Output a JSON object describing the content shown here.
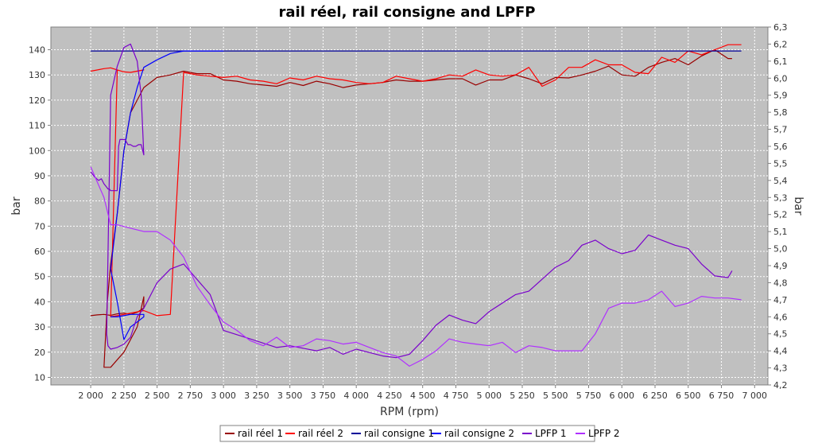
{
  "chart_data": {
    "type": "line",
    "title": "rail réel, rail consigne and LPFP",
    "xlabel": "RPM (rpm)",
    "ylabel": "bar",
    "y2label": "bar",
    "xlim": [
      1700,
      7100
    ],
    "ylim": [
      7,
      149
    ],
    "y2lim": [
      4.2,
      6.3
    ],
    "x_ticks": [
      2000,
      2250,
      2500,
      2750,
      3000,
      3250,
      3500,
      3750,
      4000,
      4250,
      4500,
      4750,
      5000,
      5250,
      5500,
      5750,
      6000,
      6250,
      6500,
      6750,
      7000
    ],
    "x_tick_labels": [
      "2 000",
      "2 250",
      "2 500",
      "2 750",
      "3 000",
      "3 250",
      "3 500",
      "3 750",
      "4 000",
      "4 250",
      "4 500",
      "4 750",
      "5 000",
      "5 250",
      "5 500",
      "5 750",
      "6 000",
      "6 250",
      "6 500",
      "6 750",
      "7 000"
    ],
    "y_ticks": [
      10,
      20,
      30,
      40,
      50,
      60,
      70,
      80,
      90,
      100,
      110,
      120,
      130,
      140
    ],
    "y2_ticks": [
      4.2,
      4.3,
      4.4,
      4.5,
      4.6,
      4.7,
      4.8,
      4.9,
      5.0,
      5.1,
      5.2,
      5.3,
      5.4,
      5.5,
      5.6,
      5.7,
      5.8,
      5.9,
      6.0,
      6.1,
      6.2,
      6.3
    ],
    "y2_tick_labels": [
      "4,2",
      "4,3",
      "4,4",
      "4,5",
      "4,6",
      "4,7",
      "4,8",
      "4,9",
      "5,0",
      "5,1",
      "5,2",
      "5,3",
      "5,4",
      "5,5",
      "5,6",
      "5,7",
      "5,8",
      "5,9",
      "6,0",
      "6,1",
      "6,2",
      "6,3"
    ],
    "grid": true,
    "legend_position": "bottom",
    "colors": {
      "rail_reel_1": "#990000",
      "rail_reel_2": "#ff0000",
      "rail_consigne_1": "#000099",
      "rail_consigne_2": "#0000ff",
      "lpfp_1": "#7a00cc",
      "lpfp_2": "#b030ff"
    },
    "series": [
      {
        "name": "rail réel 1",
        "color_key": "rail_reel_1",
        "axis": "left",
        "x": [
          2000,
          2050,
          2100,
          2150,
          2200,
          2250,
          2300,
          2350,
          2400,
          2400,
          2350,
          2300,
          2250,
          2200,
          2150,
          2100,
          2125,
          2150,
          2200,
          2250,
          2300,
          2350,
          2400,
          2500,
          2600,
          2700,
          2800,
          2900,
          3000,
          3100,
          3200,
          3300,
          3400,
          3500,
          3600,
          3700,
          3800,
          3900,
          4000,
          4100,
          4200,
          4300,
          4400,
          4500,
          4600,
          4700,
          4800,
          4900,
          5000,
          5100,
          5200,
          5300,
          5400,
          5500,
          5600,
          5700,
          5800,
          5900,
          6000,
          6100,
          6200,
          6300,
          6400,
          6500,
          6600,
          6700,
          6800,
          6830
        ],
        "y": [
          34.5,
          34.8,
          35.0,
          34.6,
          35.2,
          35.5,
          35.0,
          35.8,
          37.5,
          42.0,
          30.0,
          25.0,
          20.0,
          17.0,
          14.0,
          14.0,
          40.0,
          55.0,
          75.0,
          100.0,
          115.0,
          120.0,
          125.0,
          129.0,
          130.0,
          131.5,
          130.5,
          130.5,
          128.0,
          127.5,
          126.5,
          126.0,
          125.5,
          127.0,
          125.8,
          127.5,
          126.5,
          125.0,
          126.0,
          126.5,
          127.0,
          128.0,
          127.5,
          127.5,
          128.0,
          128.5,
          128.5,
          126.0,
          128.0,
          128.0,
          130.0,
          128.5,
          126.5,
          129.0,
          128.8,
          130.0,
          131.5,
          133.5,
          130.0,
          129.5,
          133.0,
          135.0,
          136.5,
          134.0,
          137.5,
          140.0,
          136.5,
          136.5
        ]
      },
      {
        "name": "rail réel 2",
        "color_key": "rail_reel_2",
        "axis": "left",
        "x": [
          2000,
          2100,
          2150,
          2200,
          2250,
          2300,
          2350,
          2400,
          2400,
          2300,
          2250,
          2200,
          2150,
          2200,
          2250,
          2300,
          2400,
          2500,
          2600,
          2700,
          2800,
          2900,
          3000,
          3100,
          3200,
          3300,
          3400,
          3500,
          3600,
          3700,
          3800,
          3900,
          4000,
          4100,
          4200,
          4300,
          4400,
          4500,
          4600,
          4700,
          4800,
          4900,
          5000,
          5100,
          5200,
          5300,
          5400,
          5500,
          5600,
          5700,
          5800,
          5900,
          6000,
          6100,
          6200,
          6300,
          6400,
          6500,
          6600,
          6700,
          6800,
          6900
        ],
        "y": [
          131.5,
          132.5,
          132.8,
          132.0,
          131.2,
          131.0,
          131.5,
          132.0,
          132.0,
          131.0,
          131.2,
          132.0,
          34.0,
          34.5,
          35.0,
          35.5,
          36.5,
          34.5,
          35.0,
          131.0,
          130.0,
          129.5,
          129.0,
          129.5,
          128.0,
          127.5,
          126.5,
          128.8,
          128.0,
          129.5,
          128.5,
          128.0,
          127.0,
          126.5,
          127.0,
          129.5,
          128.5,
          127.5,
          128.5,
          130.0,
          129.5,
          132.0,
          130.0,
          129.5,
          130.0,
          133.0,
          125.5,
          128.0,
          133.0,
          133.0,
          136.0,
          134.0,
          134.0,
          131.0,
          130.5,
          137.0,
          135.0,
          139.5,
          138.0,
          140.0,
          142.0,
          142.0
        ]
      },
      {
        "name": "rail consigne 1",
        "color_key": "rail_consigne_1",
        "axis": "left",
        "x": [
          2000,
          2200,
          2400,
          2600,
          2800,
          3000,
          3250,
          3500,
          3750,
          4000,
          4250,
          4500,
          4750,
          5000,
          5250,
          5500,
          5750,
          6000,
          6250,
          6500,
          6750,
          6900
        ],
        "y": [
          139.5,
          139.5,
          139.5,
          139.5,
          139.5,
          139.5,
          139.5,
          139.5,
          139.5,
          139.5,
          139.5,
          139.5,
          139.5,
          139.5,
          139.5,
          139.5,
          139.5,
          139.5,
          139.5,
          139.5,
          139.5,
          139.5
        ]
      },
      {
        "name": "rail consigne 2",
        "color_key": "rail_consigne_2",
        "axis": "left",
        "x": [
          2150,
          2200,
          2250,
          2300,
          2400,
          2400,
          2350,
          2300,
          2250,
          2200,
          2150,
          2150,
          2200,
          2250,
          2300,
          2350,
          2400,
          2500,
          2600,
          2700,
          2800,
          2900,
          3000
        ],
        "y": [
          34.0,
          34.0,
          34.5,
          35.0,
          35.0,
          34.0,
          32.0,
          30.0,
          25.0,
          40.0,
          53.0,
          53.0,
          75.0,
          100.0,
          115.0,
          125.0,
          133.0,
          136.0,
          138.5,
          139.5,
          139.5,
          139.5,
          139.5
        ]
      },
      {
        "name": "LPFP 1",
        "color_key": "lpfp_1",
        "axis": "right",
        "x": [
          2000,
          2010,
          2030,
          2060,
          2080,
          2100,
          2120,
          2130,
          2140,
          2150,
          2170,
          2180,
          2200,
          2210,
          2220,
          2260,
          2280,
          2300,
          2320,
          2340,
          2360,
          2380,
          2380,
          2400,
          2380,
          2350,
          2300,
          2250,
          2200,
          2150,
          2120,
          2130,
          2150,
          2200,
          2250,
          2300,
          2350,
          2400,
          2500,
          2600,
          2700,
          2800,
          2900,
          3000,
          3200,
          3400,
          3500,
          3700,
          3800,
          3900,
          4000,
          4100,
          4200,
          4300,
          4400,
          4500,
          4600,
          4700,
          4800,
          4900,
          5000,
          5100,
          5200,
          5300,
          5400,
          5500,
          5600,
          5700,
          5800,
          5900,
          6000,
          6100,
          6200,
          6300,
          6400,
          6500,
          6600,
          6700,
          6800,
          6830
        ],
        "y": [
          5.45,
          5.44,
          5.42,
          5.4,
          5.41,
          5.38,
          5.36,
          5.35,
          5.35,
          5.34,
          5.34,
          5.34,
          5.34,
          5.6,
          5.64,
          5.64,
          5.61,
          5.61,
          5.6,
          5.6,
          5.61,
          5.61,
          5.61,
          5.55,
          5.9,
          6.1,
          6.2,
          6.18,
          6.07,
          5.9,
          4.5,
          4.43,
          4.41,
          4.42,
          4.44,
          4.48,
          4.6,
          4.65,
          4.8,
          4.88,
          4.91,
          4.82,
          4.73,
          4.52,
          4.47,
          4.42,
          4.43,
          4.4,
          4.42,
          4.38,
          4.41,
          4.39,
          4.37,
          4.36,
          4.38,
          4.46,
          4.55,
          4.61,
          4.58,
          4.56,
          4.63,
          4.68,
          4.73,
          4.75,
          4.82,
          4.89,
          4.93,
          5.02,
          5.05,
          5.0,
          4.97,
          4.99,
          5.08,
          5.05,
          5.02,
          5.0,
          4.91,
          4.84,
          4.83,
          4.87
        ]
      },
      {
        "name": "LPFP 2",
        "color_key": "lpfp_2",
        "axis": "right",
        "x": [
          2000,
          2100,
          2150,
          2200,
          2300,
          2400,
          2500,
          2600,
          2700,
          2800,
          2900,
          3000,
          3100,
          3200,
          3300,
          3400,
          3500,
          3600,
          3700,
          3800,
          3900,
          4000,
          4100,
          4200,
          4300,
          4400,
          4500,
          4600,
          4700,
          4800,
          4900,
          5000,
          5100,
          5200,
          5300,
          5400,
          5500,
          5600,
          5700,
          5800,
          5900,
          6000,
          6100,
          6200,
          6300,
          6400,
          6500,
          6600,
          6700,
          6800,
          6900
        ],
        "y": [
          5.48,
          5.3,
          5.14,
          5.14,
          5.12,
          5.1,
          5.1,
          5.05,
          4.95,
          4.78,
          4.67,
          4.57,
          4.52,
          4.46,
          4.43,
          4.48,
          4.42,
          4.43,
          4.47,
          4.46,
          4.44,
          4.45,
          4.42,
          4.39,
          4.37,
          4.31,
          4.35,
          4.4,
          4.47,
          4.45,
          4.44,
          4.43,
          4.45,
          4.39,
          4.43,
          4.42,
          4.4,
          4.4,
          4.4,
          4.5,
          4.65,
          4.68,
          4.68,
          4.7,
          4.75,
          4.66,
          4.68,
          4.72,
          4.71,
          4.71,
          4.7
        ]
      }
    ]
  }
}
